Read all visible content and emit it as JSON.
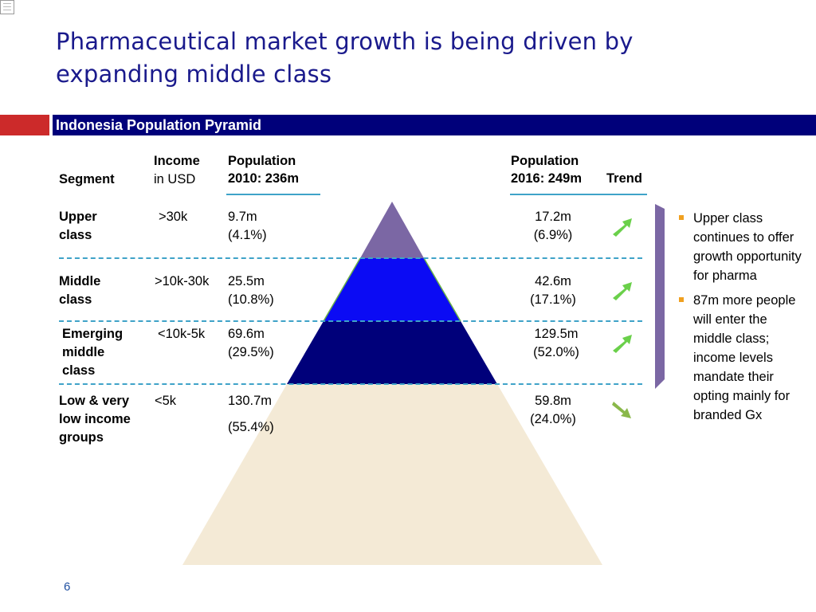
{
  "slide": {
    "title_line1": "Pharmaceutical market growth is being driven by",
    "title_line2": "expanding middle class",
    "section_header": "Indonesia Population Pyramid",
    "page_number": "6"
  },
  "table": {
    "headers": {
      "segment": "Segment",
      "income_line1": "Income",
      "income_line2": "in USD",
      "pop2010_line1": "Population",
      "pop2010_line2": "2010: 236m",
      "pop2016_line1": "Population",
      "pop2016_line2": "2016: 249m",
      "trend": "Trend"
    },
    "rows": [
      {
        "segment": [
          "Upper",
          "class"
        ],
        "income": ">30k",
        "pop2010": [
          "9.7m",
          "(4.1%)"
        ],
        "pop2016": [
          "17.2m",
          "(6.9%)"
        ],
        "trend": "up"
      },
      {
        "segment": [
          "Middle",
          "class"
        ],
        "income": ">10k-30k",
        "pop2010": [
          "25.5m",
          "(10.8%)"
        ],
        "pop2016": [
          "42.6m",
          "(17.1%)"
        ],
        "trend": "up"
      },
      {
        "segment": [
          "Emerging",
          "middle",
          "class"
        ],
        "income": "<10k-5k",
        "pop2010": [
          "69.6m",
          "(29.5%)"
        ],
        "pop2016": [
          "129.5m",
          "(52.0%)"
        ],
        "trend": "up"
      },
      {
        "segment": [
          "Low & very",
          "low income",
          "groups"
        ],
        "income": "<5k",
        "pop2010": [
          "130.7m",
          "(55.4%)"
        ],
        "pop2016": [
          "59.8m",
          "(24.0%)"
        ],
        "trend": "down"
      }
    ]
  },
  "pyramid_colors": {
    "upper": "#7b67a4",
    "middle": "#0b0bf4",
    "emerging": "#00007a",
    "low": "#f4ead6",
    "arrow_up": "#6ad04a",
    "arrow_down": "#8ab84a",
    "bracket": "#7b67a4"
  },
  "bullets": [
    "Upper class continues to offer growth opportunity for pharma",
    "87m more people will enter the middle class; income levels mandate their opting mainly for branded Gx"
  ]
}
